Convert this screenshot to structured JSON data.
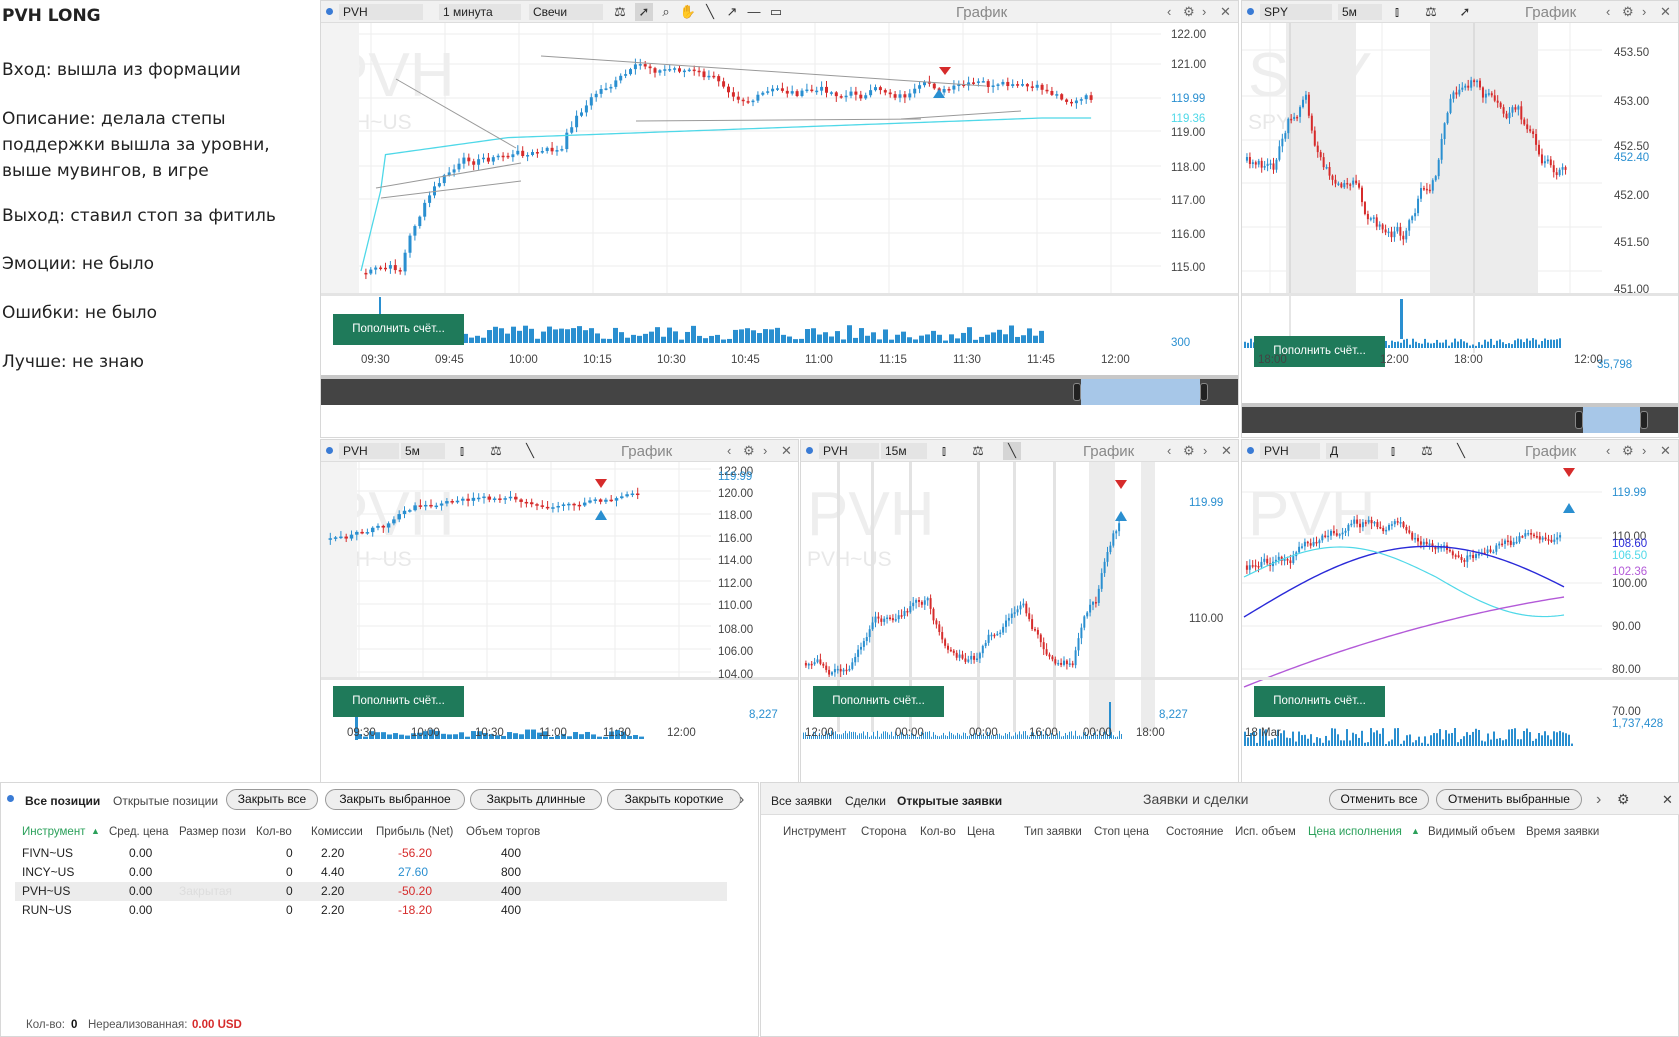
{
  "notes": {
    "title": "PVH LONG",
    "lines": [
      "Вход: вышла из формации",
      "Описание: делала степы поддержки вышла за уровни, выше мувингов, в игре",
      "Выход: ставил стоп за фитиль",
      "Эмоции: не было",
      "Ошибки: не было",
      "Лучше: не знаю"
    ]
  },
  "common": {
    "chart_label": "График",
    "topup_button": "Пополнить счёт..."
  },
  "panels": {
    "p1": {
      "symbol": "PVH",
      "timeframe": "1 минута",
      "chart_type": "Свечи",
      "wm": "PVH",
      "wm2": "PVH~US",
      "y_ticks": [
        "122.00",
        "121.00",
        "120.00",
        "119.00",
        "118.00",
        "117.00",
        "116.00",
        "115.00"
      ],
      "price_label": "119.99",
      "ma_label": "119.36",
      "vol_label": "300",
      "x_ticks": [
        "09:30",
        "09:45",
        "10:00",
        "10:15",
        "10:30",
        "10:45",
        "11:00",
        "11:15",
        "11:30",
        "11:45",
        "12:00"
      ]
    },
    "p2": {
      "symbol": "SPY",
      "timeframe": "5м",
      "wm": "SPY",
      "wm2": "SPY~US",
      "y_ticks": [
        "453.50",
        "453.00",
        "452.50",
        "452.00",
        "451.50",
        "451.00"
      ],
      "price_label": "452.40",
      "vol_label": "35,798",
      "x_ticks": [
        "18:00",
        "12:00",
        "18:00",
        "12:00"
      ]
    },
    "p3": {
      "symbol": "PVH",
      "timeframe": "5м",
      "wm": "PVH",
      "wm2": "PVH~US",
      "y_ticks": [
        "122.00",
        "120.00",
        "118.00",
        "116.00",
        "114.00",
        "112.00",
        "110.00",
        "108.00",
        "106.00",
        "104.00"
      ],
      "price_label": "119.99",
      "vol_label": "8,227",
      "x_ticks": [
        "09:30",
        "10:00",
        "10:30",
        "11:00",
        "11:30",
        "12:00"
      ]
    },
    "p4": {
      "symbol": "PVH",
      "timeframe": "15м",
      "wm": "PVH",
      "wm2": "PVH~US",
      "y_ticks": [
        "110.00"
      ],
      "price_label": "119.99",
      "vol_label": "8,227",
      "x_ticks": [
        "12:00",
        "00:00",
        "00:00",
        "16:00",
        "00:00",
        "18:00"
      ]
    },
    "p5": {
      "symbol": "PVH",
      "timeframe": "Д",
      "wm": "PVH",
      "y_ticks": [
        "110.00",
        "100.00",
        "90.00",
        "80.00",
        "70.00"
      ],
      "price_label": "119.99",
      "ma1_label": "108.60",
      "ma2_label": "106.50",
      "ma3_label": "102.36",
      "vol_label": "1,737,428",
      "x_ticks": [
        "18 Mar"
      ]
    }
  },
  "positions": {
    "tabs": [
      "Все позиции",
      "Открытые позиции"
    ],
    "buttons": [
      "Закрыть все",
      "Закрыть выбранное",
      "Закрыть длинные",
      "Закрыть короткие"
    ],
    "more": "›",
    "columns": [
      "Инструмент",
      "Сред. цена",
      "Размер пози",
      "Кол-во",
      "Комиссии",
      "Прибыль (Net)",
      "Объем торгов"
    ],
    "rows": [
      {
        "instr": "FIVN~US",
        "avg": "0.00",
        "size": "",
        "qty": "0",
        "comm": "2.20",
        "pnl": "-56.20",
        "vol": "400"
      },
      {
        "instr": "INCY~US",
        "avg": "0.00",
        "size": "",
        "qty": "0",
        "comm": "4.40",
        "pnl": "27.60",
        "vol": "800"
      },
      {
        "instr": "PVH~US",
        "avg": "0.00",
        "size": "Закрытая",
        "qty": "0",
        "comm": "2.20",
        "pnl": "-50.20",
        "vol": "400"
      },
      {
        "instr": "RUN~US",
        "avg": "0.00",
        "size": "",
        "qty": "0",
        "comm": "2.20",
        "pnl": "-18.20",
        "vol": "400"
      }
    ],
    "footer_qty_label": "Кол-во:",
    "footer_qty": "0",
    "footer_unreal_label": "Нереализованная:",
    "footer_unreal": "0.00 USD"
  },
  "orders": {
    "tabs": [
      "Все заявки",
      "Сделки",
      "Открытые заявки"
    ],
    "title": "Заявки и сделки",
    "buttons": [
      "Отменить все",
      "Отменить выбранные"
    ],
    "columns": [
      "Инструмент",
      "Сторона",
      "Кол-во",
      "Цена",
      "Тип заявки",
      "Стоп цена",
      "Состояние",
      "Исп. объем",
      "Цена исполнения",
      "Видимый объем",
      "Время заявки"
    ]
  },
  "colors": {
    "up": "#2a8fd0",
    "down": "#d62b2b",
    "ma_cyan": "#4fd8e8",
    "ma_blue": "#2a2ad8",
    "ma_purple": "#b35ad8",
    "accent_green": "#1f7a5a"
  }
}
